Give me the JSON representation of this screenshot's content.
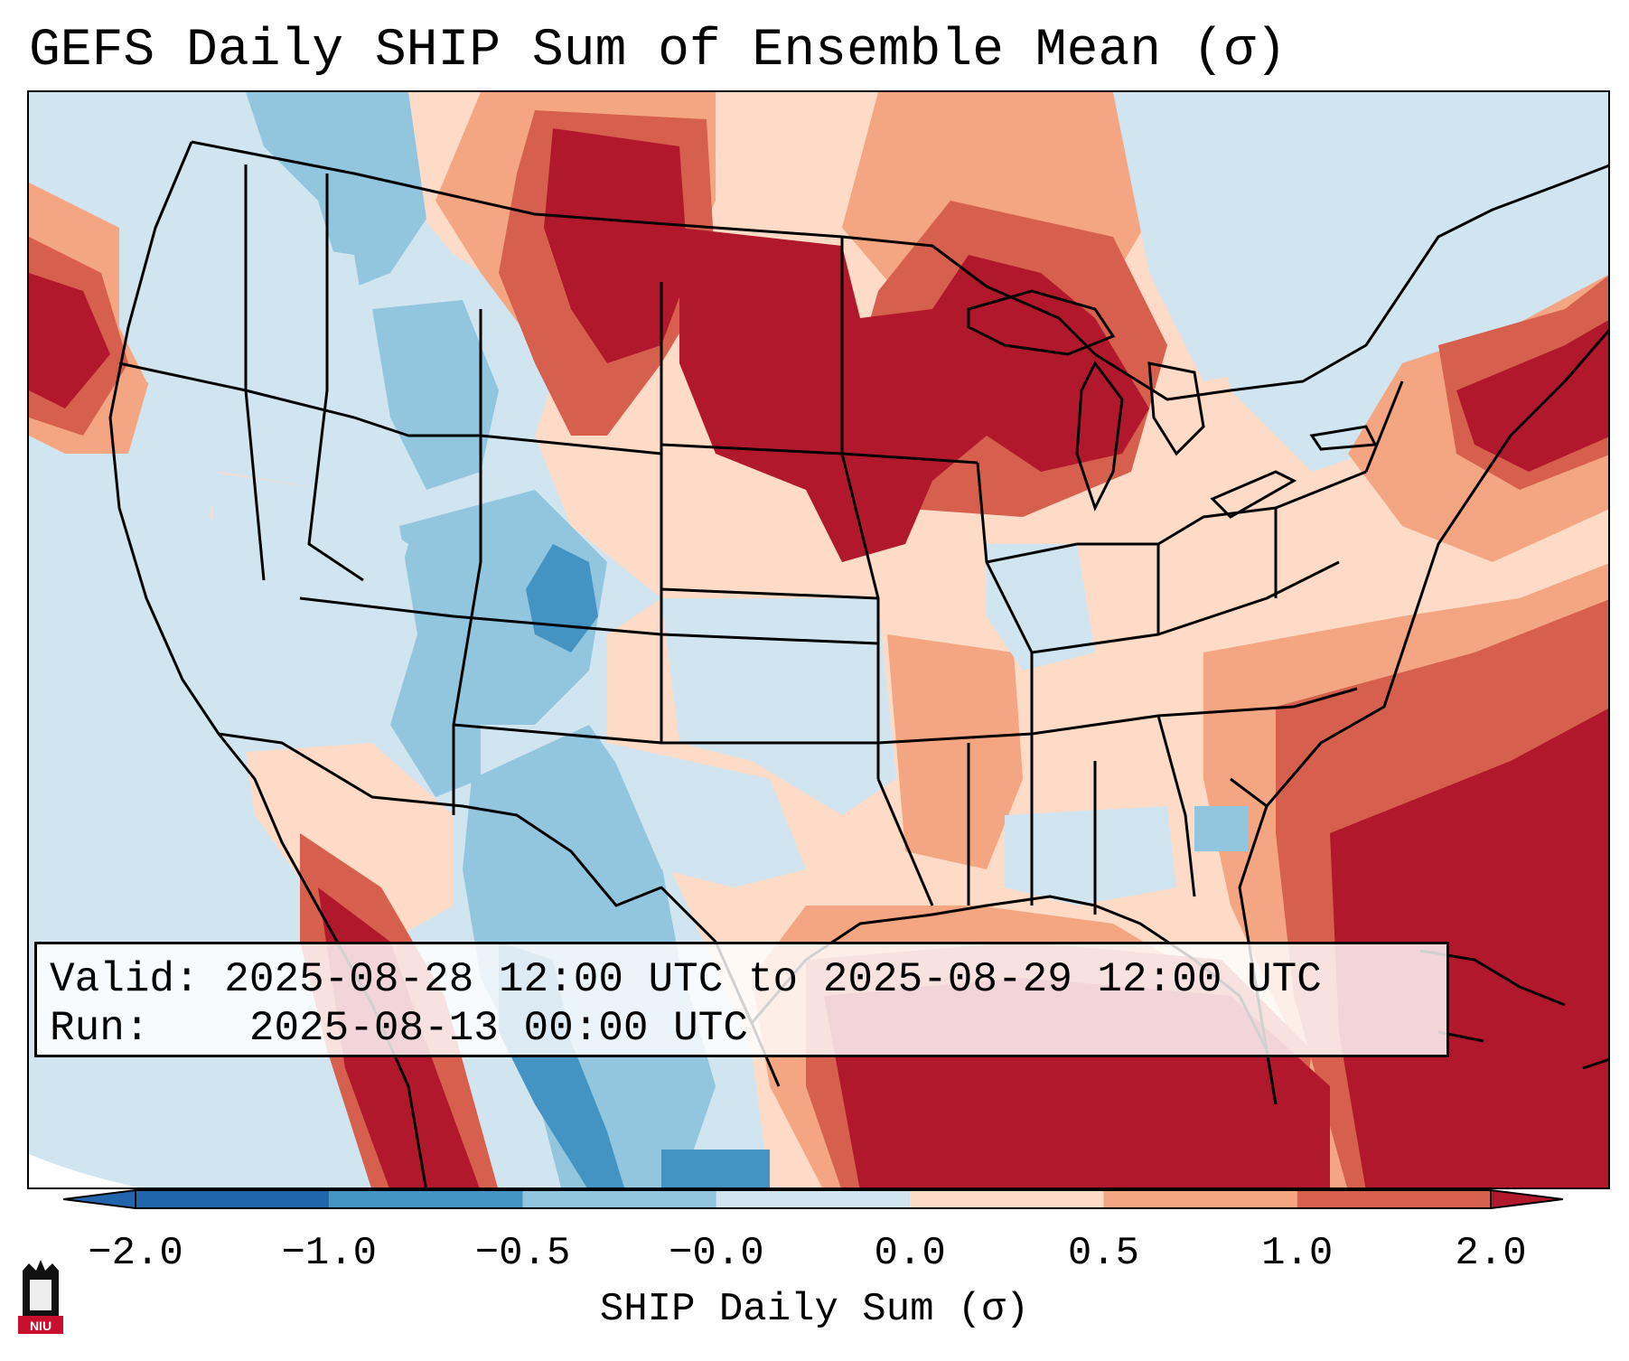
{
  "title": "GEFS Daily SHIP Sum of Ensemble Mean (σ)",
  "info": {
    "valid_label": "Valid:",
    "valid_value": "2025-08-28 12:00 UTC to 2025-08-29 12:00 UTC",
    "run_label": "Run:",
    "run_value": "2025-08-13 00:00 UTC"
  },
  "colorbar": {
    "label": "SHIP Daily Sum (σ)",
    "ticks": [
      "−2.0",
      "−1.0",
      "−0.5",
      "−0.0",
      "0.0",
      "0.5",
      "1.0",
      "2.0"
    ],
    "colors": [
      "#2166ac",
      "#4393c3",
      "#92c5de",
      "#d1e5f0",
      "#fddbc7",
      "#f4a582",
      "#d6604d",
      "#b2182b"
    ],
    "extend": "both"
  },
  "map_legend": {
    "variable": "SHIP Daily Sum",
    "units": "σ",
    "region": "CONUS"
  },
  "logo": {
    "text": "NIU"
  }
}
